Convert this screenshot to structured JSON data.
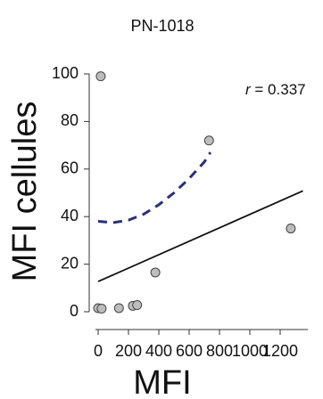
{
  "chart_data": {
    "type": "scatter",
    "title": "PN-1018",
    "x_label": "MFI",
    "y_label": "MFI cellules",
    "annotation": {
      "symbol": "r",
      "text": "= 0.337"
    },
    "x": [
      17,
      0,
      23,
      137,
      229,
      257,
      377,
      731,
      1270
    ],
    "values": [
      99,
      1.5,
      1.3,
      1.5,
      2.5,
      2.8,
      16.5,
      72,
      35
    ],
    "color": "#bdbdbd",
    "fit_line": {
      "x": [
        0,
        1350
      ],
      "values": [
        12.7,
        50.8
      ],
      "color": "#111111"
    },
    "curve": {
      "x": [
        0,
        100,
        200,
        300,
        400,
        500,
        600,
        700,
        740
      ],
      "values": [
        38,
        37.5,
        38.5,
        41,
        45,
        50,
        56,
        63,
        67
      ],
      "color": "#2b2f7a"
    },
    "xlim": [
      0,
      1350
    ],
    "xticks": [
      0,
      200,
      400,
      600,
      800,
      1000,
      1200
    ],
    "ylim": [
      0,
      100
    ],
    "yticks": [
      0,
      20,
      40,
      60,
      80,
      100
    ]
  }
}
